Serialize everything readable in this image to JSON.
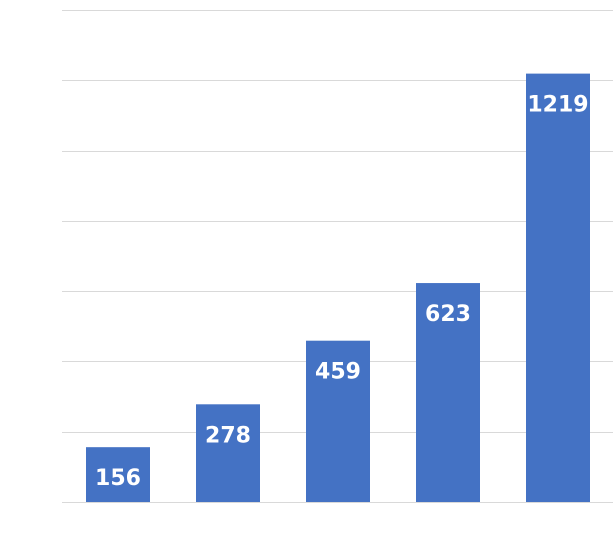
{
  "chart_data": {
    "type": "bar",
    "categories": [
      "",
      "",
      "",
      "",
      ""
    ],
    "values": [
      156,
      278,
      459,
      623,
      1219
    ],
    "data_labels": [
      "156",
      "278",
      "459",
      "623",
      "1219"
    ],
    "title": "",
    "xlabel": "",
    "ylabel": "",
    "ylim": [
      0,
      1400
    ],
    "ytick_step": 200,
    "grid": true,
    "legend": "none",
    "colors": {
      "bar": "#4472c4",
      "grid": "#d9d9d9",
      "label": "#ffffff"
    }
  }
}
